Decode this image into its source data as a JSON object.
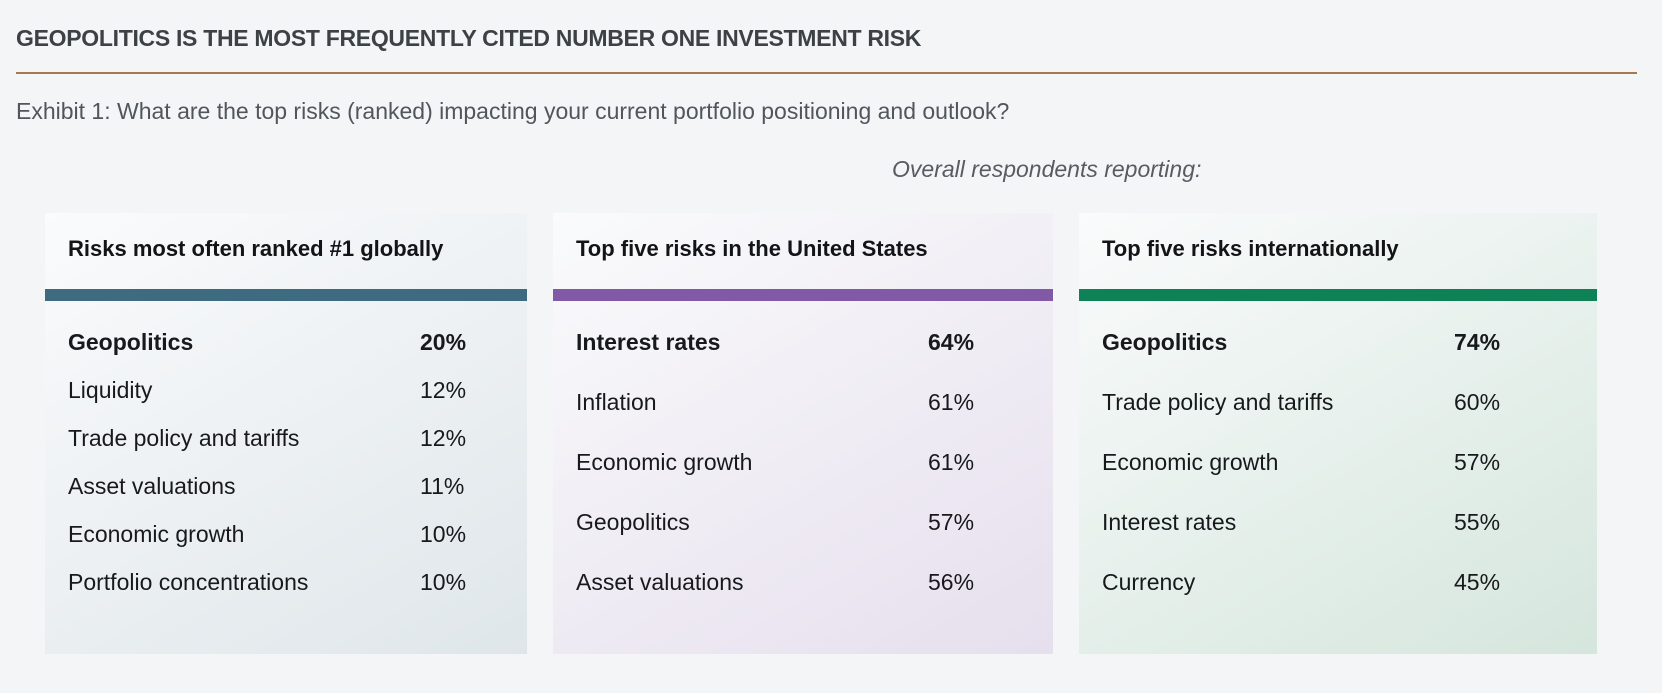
{
  "header": {
    "title": "GEOPOLITICS IS THE MOST FREQUENTLY CITED NUMBER ONE INVESTMENT RISK",
    "exhibit_caption": "Exhibit 1: What are the top risks (ranked) impacting your current portfolio positioning and outlook?",
    "respondents_note": "Overall respondents reporting:"
  },
  "colors": {
    "page_background": "#f4f5f7",
    "title_text": "#3c4145",
    "divider_rule": "#a8794e",
    "caption_text": "#50565c",
    "row_text": "#17191c"
  },
  "chart_data": {
    "type": "table",
    "title": "Exhibit 1: What are the top risks (ranked) impacting your current portfolio positioning and outlook?",
    "note": "Overall respondents reporting:",
    "tables": [
      {
        "title": "Risks most often ranked #1 globally",
        "accent_color": "#3e6b80",
        "tint_color": "#dfe6ea",
        "rows": [
          {
            "label": "Geopolitics",
            "value": "20%",
            "pct": 20
          },
          {
            "label": "Liquidity",
            "value": "12%",
            "pct": 12
          },
          {
            "label": "Trade policy and tariffs",
            "value": "12%",
            "pct": 12
          },
          {
            "label": "Asset valuations",
            "value": "11%",
            "pct": 11
          },
          {
            "label": "Economic growth",
            "value": "10%",
            "pct": 10
          },
          {
            "label": "Portfolio concentrations",
            "value": "10%",
            "pct": 10
          }
        ]
      },
      {
        "title": "Top five risks in the United States",
        "accent_color": "#8159a6",
        "tint_color": "#e6dfed",
        "rows": [
          {
            "label": "Interest rates",
            "value": "64%",
            "pct": 64
          },
          {
            "label": "Inflation",
            "value": "61%",
            "pct": 61
          },
          {
            "label": "Economic growth",
            "value": "61%",
            "pct": 61
          },
          {
            "label": "Geopolitics",
            "value": "57%",
            "pct": 57
          },
          {
            "label": "Asset valuations",
            "value": "56%",
            "pct": 56
          }
        ]
      },
      {
        "title": "Top five risks internationally",
        "accent_color": "#0e8157",
        "tint_color": "#d5e6dd",
        "rows": [
          {
            "label": "Geopolitics",
            "value": "74%",
            "pct": 74
          },
          {
            "label": "Trade policy and tariffs",
            "value": "60%",
            "pct": 60
          },
          {
            "label": "Economic growth",
            "value": "57%",
            "pct": 57
          },
          {
            "label": "Interest rates",
            "value": "55%",
            "pct": 55
          },
          {
            "label": "Currency",
            "value": "45%",
            "pct": 45
          }
        ]
      }
    ]
  }
}
